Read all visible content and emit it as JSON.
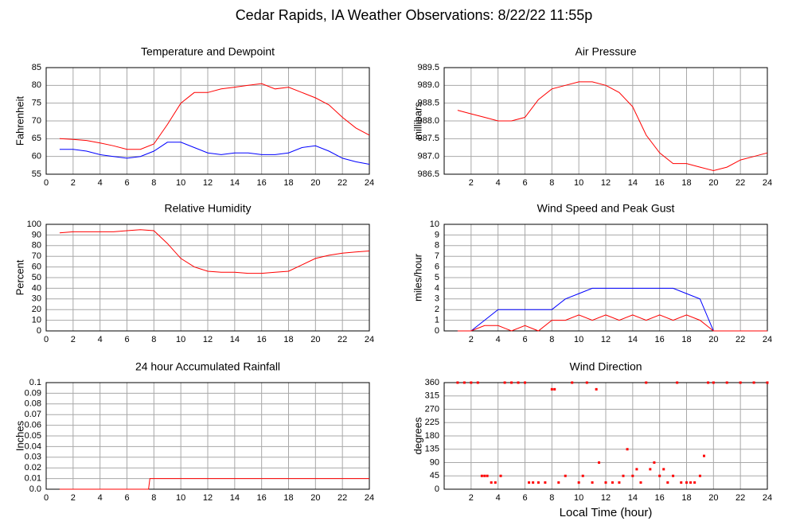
{
  "title": "Cedar Rapids, IA Weather Observations: 8/22/22 11:55p",
  "chart_data": [
    {
      "type": "line",
      "title": "Temperature and Dewpoint",
      "ylabel": "Fahrenheit",
      "x": [
        1,
        2,
        3,
        4,
        5,
        6,
        7,
        8,
        9,
        10,
        11,
        12,
        13,
        14,
        15,
        16,
        17,
        18,
        19,
        20,
        21,
        22,
        23,
        24
      ],
      "series": [
        {
          "color": "#ff0000",
          "values": [
            65,
            64.8,
            64.5,
            63.8,
            63,
            62,
            62,
            63.5,
            69,
            75,
            78,
            78,
            79,
            79.5,
            80,
            80.5,
            79,
            79.5,
            78,
            76.5,
            74.5,
            71,
            68,
            66
          ]
        },
        {
          "color": "#0000ff",
          "values": [
            62,
            62,
            61.5,
            60.5,
            60,
            59.5,
            60,
            61.5,
            64,
            64,
            62.5,
            61,
            60.5,
            61,
            61,
            60.5,
            60.5,
            61,
            62.5,
            63,
            61.5,
            59.5,
            58.5,
            57.8
          ]
        }
      ],
      "xlim": [
        0,
        24
      ],
      "xticks": [
        0,
        2,
        4,
        6,
        8,
        10,
        12,
        14,
        16,
        18,
        20,
        22,
        24
      ],
      "ylim": [
        55,
        85
      ],
      "yticks": [
        55,
        60,
        65,
        70,
        75,
        80,
        85
      ],
      "grid": true
    },
    {
      "type": "line",
      "title": "Air Pressure",
      "ylabel": "millibars",
      "x": [
        1,
        2,
        3,
        4,
        5,
        6,
        7,
        8,
        9,
        10,
        11,
        12,
        13,
        14,
        15,
        16,
        17,
        18,
        19,
        20,
        21,
        22,
        23,
        24
      ],
      "series": [
        {
          "color": "#ff0000",
          "values": [
            988.3,
            988.2,
            988.1,
            988.0,
            988.0,
            988.1,
            988.6,
            988.9,
            989.0,
            989.1,
            989.1,
            989.0,
            988.8,
            988.4,
            987.6,
            987.1,
            986.8,
            986.8,
            986.7,
            986.6,
            986.7,
            986.9,
            987.0,
            987.1
          ]
        }
      ],
      "xlim": [
        0,
        24
      ],
      "xticks": [
        2,
        4,
        6,
        8,
        10,
        12,
        14,
        16,
        18,
        20,
        22,
        24
      ],
      "ylim": [
        986.5,
        989.5
      ],
      "yticks": [
        986.5,
        {
          "value": 987,
          "label": "987.0"
        },
        987.5,
        {
          "value": 988,
          "label": "988.0"
        },
        988.5,
        {
          "value": 989,
          "label": "989.0"
        },
        989.5
      ],
      "grid": true
    },
    {
      "type": "line",
      "title": "Relative Humidity",
      "ylabel": "Percent",
      "x": [
        1,
        2,
        3,
        4,
        5,
        6,
        7,
        8,
        9,
        10,
        11,
        12,
        13,
        14,
        15,
        16,
        17,
        18,
        19,
        20,
        21,
        22,
        23,
        24
      ],
      "series": [
        {
          "color": "#ff0000",
          "values": [
            92,
            93,
            93,
            93,
            93,
            94,
            95,
            94,
            82,
            68,
            60,
            56,
            55,
            55,
            54,
            54,
            55,
            56,
            62,
            68,
            71,
            73,
            74,
            75
          ]
        }
      ],
      "xlim": [
        0,
        24
      ],
      "xticks": [
        0,
        2,
        4,
        6,
        8,
        10,
        12,
        14,
        16,
        18,
        20,
        22,
        24
      ],
      "ylim": [
        0,
        100
      ],
      "yticks": [
        0,
        10,
        20,
        30,
        40,
        50,
        60,
        70,
        80,
        90,
        100
      ],
      "grid": true
    },
    {
      "type": "line",
      "title": "Wind Speed and Peak Gust",
      "ylabel": "miles/hour",
      "x": [
        1,
        2,
        3,
        4,
        5,
        6,
        7,
        8,
        9,
        10,
        11,
        12,
        13,
        14,
        15,
        16,
        17,
        18,
        19,
        20,
        21,
        22,
        23,
        24
      ],
      "series": [
        {
          "color": "#0000ff",
          "values": [
            0,
            0,
            1,
            2,
            2,
            2,
            2,
            2,
            3,
            3.5,
            4,
            4,
            4,
            4,
            4,
            4,
            4,
            3.5,
            3,
            0,
            0,
            0,
            0,
            0
          ]
        },
        {
          "color": "#ff0000",
          "values": [
            0,
            0,
            0.5,
            0.5,
            0,
            0.5,
            0,
            1,
            1,
            1.5,
            1,
            1.5,
            1,
            1.5,
            1,
            1.5,
            1,
            1.5,
            1,
            0,
            0,
            0,
            0,
            0
          ]
        }
      ],
      "xlim": [
        0,
        24
      ],
      "xticks": [
        2,
        4,
        6,
        8,
        10,
        12,
        14,
        16,
        18,
        20,
        22,
        24
      ],
      "ylim": [
        0,
        10
      ],
      "yticks": [
        0,
        1,
        2,
        3,
        4,
        5,
        6,
        7,
        8,
        9,
        10
      ],
      "grid": true
    },
    {
      "type": "line",
      "title": "24 hour Accumulated Rainfall",
      "ylabel": "Inches",
      "x": [
        1,
        7.6,
        7.7,
        24
      ],
      "series": [
        {
          "color": "#ff0000",
          "values": [
            0,
            0,
            0.01,
            0.01
          ]
        }
      ],
      "xlim": [
        0,
        24
      ],
      "xticks": [
        0,
        2,
        4,
        6,
        8,
        10,
        12,
        14,
        16,
        18,
        20,
        22,
        24
      ],
      "ylim": [
        0,
        0.1
      ],
      "yticks": [
        {
          "value": 0,
          "label": "0.0"
        },
        0.01,
        0.02,
        0.03,
        0.04,
        0.05,
        0.06,
        0.07,
        0.08,
        0.09,
        0.1
      ],
      "grid": true
    },
    {
      "type": "scatter",
      "title": "Wind Direction",
      "ylabel": "degrees",
      "xlabel": "Local Time (hour)",
      "x": [
        1,
        1.5,
        2,
        2.5,
        2.8,
        3,
        3.2,
        3.5,
        3.8,
        4.2,
        4.5,
        5,
        5.5,
        6,
        6.3,
        6.6,
        7,
        7.5,
        8,
        8.2,
        8.5,
        9,
        9.5,
        10,
        10.3,
        10.6,
        11,
        11.3,
        11.5,
        12,
        12.5,
        13,
        13.3,
        13.6,
        14,
        14.3,
        14.6,
        15,
        15.3,
        15.6,
        16,
        16.3,
        16.6,
        17,
        17.3,
        17.6,
        18,
        18.3,
        18.6,
        19,
        19.3,
        19.6,
        20,
        21,
        22,
        23,
        24
      ],
      "values": [
        360,
        360,
        360,
        360,
        45,
        45,
        45,
        22.5,
        22.5,
        45,
        360,
        360,
        360,
        360,
        22.5,
        22.5,
        22.5,
        22.5,
        337.5,
        337.5,
        22.5,
        45,
        360,
        22.5,
        45,
        360,
        22.5,
        337.5,
        90,
        22.5,
        22.5,
        22.5,
        45,
        135,
        45,
        67.5,
        22.5,
        360,
        67.5,
        90,
        45,
        67.5,
        22.5,
        45,
        360,
        22.5,
        22.5,
        22.5,
        22.5,
        45,
        112.5,
        360,
        360,
        360,
        360,
        360,
        360
      ],
      "color": "#ff0000",
      "xlim": [
        0,
        24
      ],
      "xticks": [
        2,
        4,
        6,
        8,
        10,
        12,
        14,
        16,
        18,
        20,
        22,
        24
      ],
      "ylim": [
        0,
        360
      ],
      "yticks": [
        0,
        45,
        90,
        135,
        180,
        225,
        270,
        315,
        360
      ],
      "grid": true
    }
  ]
}
